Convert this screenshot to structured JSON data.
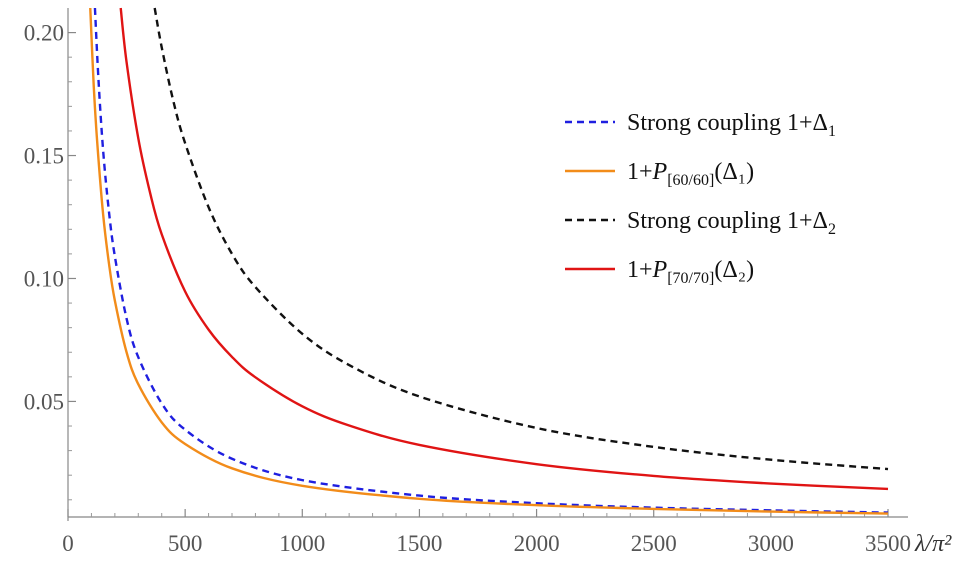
{
  "chart_data": {
    "type": "line",
    "title": "",
    "xlabel": "λ/π²",
    "ylabel": "",
    "xlim": [
      0,
      3500
    ],
    "ylim": [
      0.003,
      0.21
    ],
    "x_ticks": [
      {
        "value": 0,
        "label": "0"
      },
      {
        "value": 500,
        "label": "500"
      },
      {
        "value": 1000,
        "label": "1000"
      },
      {
        "value": 1500,
        "label": "1500"
      },
      {
        "value": 2000,
        "label": "2000"
      },
      {
        "value": 2500,
        "label": "2500"
      },
      {
        "value": 3000,
        "label": "3000"
      },
      {
        "value": 3500,
        "label": "3500"
      }
    ],
    "y_ticks": [
      {
        "value": 0.05,
        "label": "0.05"
      },
      {
        "value": 0.1,
        "label": "0.10"
      },
      {
        "value": 0.15,
        "label": "0.15"
      },
      {
        "value": 0.2,
        "label": "0.20"
      }
    ],
    "grid": false,
    "legend_position": "top-right",
    "series": [
      {
        "name": "Strong coupling 1+Δ₁",
        "legend": {
          "pre": "Strong coupling 1+Δ",
          "sub": "1",
          "post": ""
        },
        "color": "#1f1fe0",
        "dash": "dashed",
        "x": [
          115,
          130,
          150,
          175,
          200,
          250,
          300,
          400,
          500,
          700,
          1000,
          1500,
          2000,
          2500,
          3000,
          3500
        ],
        "y": [
          0.21,
          0.181,
          0.152,
          0.127,
          0.109,
          0.0837,
          0.068,
          0.0492,
          0.0385,
          0.0267,
          0.018,
          0.0117,
          0.0086,
          0.0068,
          0.0057,
          0.0048
        ]
      },
      {
        "name": "1+P[60/60](Δ₁)",
        "legend": {
          "pre": "1+",
          "italic": "P",
          "sub": "[60/60]",
          "post": "(Δ₁)"
        },
        "color": "#f28c1a",
        "dash": "solid",
        "x": [
          95,
          110,
          125,
          150,
          175,
          200,
          250,
          300,
          400,
          500,
          700,
          1000,
          1500,
          2000,
          2500,
          3000,
          3500
        ],
        "y": [
          0.21,
          0.178,
          0.155,
          0.126,
          0.106,
          0.091,
          0.07,
          0.057,
          0.0415,
          0.0327,
          0.0228,
          0.0157,
          0.0104,
          0.0078,
          0.0063,
          0.0052,
          0.0044
        ]
      },
      {
        "name": "Strong coupling 1+Δ₂",
        "legend": {
          "pre": "Strong coupling 1+Δ",
          "sub": "2",
          "post": ""
        },
        "color": "#111111",
        "dash": "dashed",
        "x": [
          370,
          400,
          450,
          500,
          600,
          700,
          800,
          1000,
          1200,
          1500,
          2000,
          2500,
          3000,
          3500
        ],
        "y": [
          0.21,
          0.194,
          0.172,
          0.155,
          0.129,
          0.11,
          0.0965,
          0.0775,
          0.0648,
          0.052,
          0.0392,
          0.0315,
          0.0263,
          0.0225
        ]
      },
      {
        "name": "1+P[70/70](Δ₂)",
        "legend": {
          "pre": "1+",
          "italic": "P",
          "sub": "[70/70]",
          "post": "(Δ₂)"
        },
        "color": "#e01414",
        "dash": "solid",
        "x": [
          225,
          250,
          300,
          350,
          400,
          500,
          600,
          700,
          800,
          1000,
          1200,
          1500,
          2000,
          2500,
          3000,
          3500
        ],
        "y": [
          0.21,
          0.188,
          0.157,
          0.135,
          0.118,
          0.0947,
          0.0792,
          0.0681,
          0.0598,
          0.048,
          0.0402,
          0.0323,
          0.0245,
          0.0197,
          0.0166,
          0.0144
        ]
      }
    ]
  }
}
